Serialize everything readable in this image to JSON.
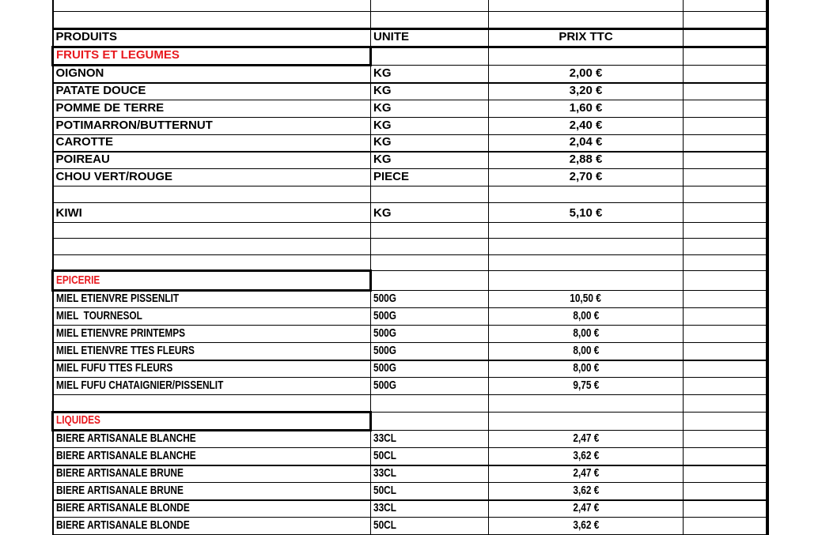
{
  "colors": {
    "section_title": "#e8191e",
    "text": "#000000",
    "grid": "#000000",
    "background": "#ffffff"
  },
  "table": {
    "header": {
      "produits": "PRODUITS",
      "unite": "UNITE",
      "prix": "PRIX TTC",
      "extra": ""
    },
    "rows": [
      {
        "type": "empty"
      },
      {
        "type": "empty"
      },
      {
        "type": "columns"
      },
      {
        "type": "section",
        "title": "FRUITS ET LEGUMES"
      },
      {
        "type": "item",
        "produit": "OIGNON",
        "unite": "KG",
        "prix": "2,00 €"
      },
      {
        "type": "item",
        "produit": "PATATE DOUCE",
        "unite": "KG",
        "prix": "3,20 €"
      },
      {
        "type": "item",
        "produit": "POMME DE TERRE",
        "unite": "KG",
        "prix": "1,60 €"
      },
      {
        "type": "item",
        "produit": "POTIMARRON/BUTTERNUT",
        "unite": "KG",
        "prix": "2,40 €"
      },
      {
        "type": "item",
        "produit": "CAROTTE",
        "unite": "KG",
        "prix": "2,04 €"
      },
      {
        "type": "item",
        "produit": "POIREAU",
        "unite": "KG",
        "prix": "2,88 €"
      },
      {
        "type": "item",
        "produit": "CHOU VERT/ROUGE",
        "unite": "PIECE",
        "prix": "2,70 €"
      },
      {
        "type": "empty"
      },
      {
        "type": "item",
        "produit": "KIWI",
        "unite": "KG",
        "prix": "5,10 €"
      },
      {
        "type": "empty"
      },
      {
        "type": "empty"
      },
      {
        "type": "empty"
      },
      {
        "type": "section",
        "title": "EPICERIE"
      },
      {
        "type": "item",
        "produit": "MIEL ETIENVRE PISSENLIT",
        "unite": "500G",
        "prix": "10,50 €"
      },
      {
        "type": "item",
        "produit": "MIEL  TOURNESOL",
        "unite": "500G",
        "prix": "8,00 €"
      },
      {
        "type": "item",
        "produit": "MIEL ETIENVRE PRINTEMPS",
        "unite": "500G",
        "prix": "8,00 €"
      },
      {
        "type": "item",
        "produit": "MIEL ETIENVRE TTES FLEURS",
        "unite": "500G",
        "prix": "8,00 €"
      },
      {
        "type": "item",
        "produit": "MIEL FUFU TTES FLEURS",
        "unite": "500G",
        "prix": "8,00 €"
      },
      {
        "type": "item",
        "produit": "MIEL FUFU CHATAIGNIER/PISSENLIT",
        "unite": "500G",
        "prix": "9,75 €"
      },
      {
        "type": "empty"
      },
      {
        "type": "section",
        "title": "LIQUIDES"
      },
      {
        "type": "item",
        "produit": "BIERE ARTISANALE BLANCHE",
        "unite": "33CL",
        "prix": "2,47 €"
      },
      {
        "type": "item",
        "produit": "BIERE ARTISANALE BLANCHE",
        "unite": "50CL",
        "prix": "3,62 €"
      },
      {
        "type": "item",
        "produit": "BIERE ARTISANALE BRUNE",
        "unite": "33CL",
        "prix": "2,47 €"
      },
      {
        "type": "item",
        "produit": "BIERE ARTISANALE BRUNE",
        "unite": "50CL",
        "prix": "3,62 €"
      },
      {
        "type": "item",
        "produit": "BIERE ARTISANALE BLONDE",
        "unite": "33CL",
        "prix": "2,47 €"
      },
      {
        "type": "item",
        "produit": "BIERE ARTISANALE BLONDE",
        "unite": "50CL",
        "prix": "3,62 €"
      }
    ]
  }
}
